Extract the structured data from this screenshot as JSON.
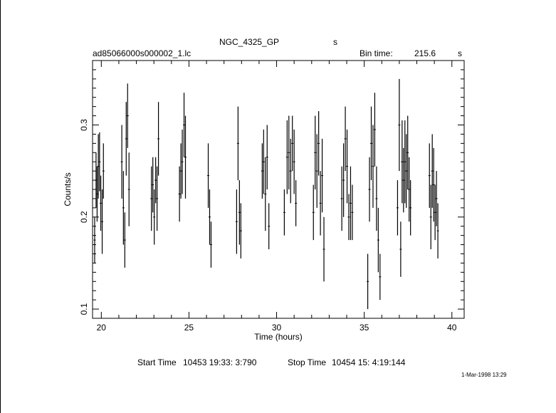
{
  "header": {
    "object": "NGC_4325_GP",
    "object_unit": "s",
    "file_name": "ad85066000s000002_1.lc",
    "bin_time_label": "Bin time:",
    "bin_time_value": "215.6",
    "bin_time_unit": "s"
  },
  "footer": {
    "start_label": "Start Time",
    "start_value": "10453 19:33: 3:790",
    "stop_label": "Stop Time",
    "stop_value": "10454 15: 4:19:144",
    "timestamp": "1-Mar-1998 13:29"
  },
  "chart_data": {
    "type": "scatter",
    "xlabel": "Time (hours)",
    "ylabel": "Counts/s",
    "xlim": [
      19.5,
      40.7
    ],
    "ylim": [
      0.09,
      0.37
    ],
    "xticks": [
      20,
      25,
      30,
      35,
      40
    ],
    "yticks": [
      0.1,
      0.2,
      0.3
    ],
    "grid": false,
    "legend": "none",
    "series": [
      {
        "points": [
          {
            "x": 19.62,
            "y": 0.175,
            "err": 0.025
          },
          {
            "x": 19.7,
            "y": 0.24,
            "err": 0.03
          },
          {
            "x": 19.76,
            "y": 0.225,
            "err": 0.03
          },
          {
            "x": 19.83,
            "y": 0.255,
            "err": 0.035
          },
          {
            "x": 19.9,
            "y": 0.26,
            "err": 0.032
          },
          {
            "x": 19.97,
            "y": 0.215,
            "err": 0.03
          },
          {
            "x": 20.05,
            "y": 0.195,
            "err": 0.035
          },
          {
            "x": 20.12,
            "y": 0.25,
            "err": 0.03
          },
          {
            "x": 21.17,
            "y": 0.26,
            "err": 0.04
          },
          {
            "x": 21.26,
            "y": 0.21,
            "err": 0.04
          },
          {
            "x": 21.34,
            "y": 0.175,
            "err": 0.03
          },
          {
            "x": 21.42,
            "y": 0.285,
            "err": 0.04
          },
          {
            "x": 21.5,
            "y": 0.31,
            "err": 0.035
          },
          {
            "x": 21.58,
            "y": 0.23,
            "err": 0.04
          },
          {
            "x": 22.86,
            "y": 0.22,
            "err": 0.035
          },
          {
            "x": 22.94,
            "y": 0.235,
            "err": 0.03
          },
          {
            "x": 23.02,
            "y": 0.2,
            "err": 0.03
          },
          {
            "x": 23.1,
            "y": 0.24,
            "err": 0.025
          },
          {
            "x": 23.18,
            "y": 0.22,
            "err": 0.035
          },
          {
            "x": 23.26,
            "y": 0.285,
            "err": 0.04
          },
          {
            "x": 24.46,
            "y": 0.225,
            "err": 0.03
          },
          {
            "x": 24.54,
            "y": 0.25,
            "err": 0.03
          },
          {
            "x": 24.62,
            "y": 0.26,
            "err": 0.035
          },
          {
            "x": 24.72,
            "y": 0.3,
            "err": 0.035
          },
          {
            "x": 24.8,
            "y": 0.265,
            "err": 0.045
          },
          {
            "x": 26.1,
            "y": 0.245,
            "err": 0.035
          },
          {
            "x": 26.18,
            "y": 0.2,
            "err": 0.03
          },
          {
            "x": 26.26,
            "y": 0.17,
            "err": 0.025
          },
          {
            "x": 27.72,
            "y": 0.195,
            "err": 0.035
          },
          {
            "x": 27.8,
            "y": 0.28,
            "err": 0.04
          },
          {
            "x": 27.88,
            "y": 0.205,
            "err": 0.035
          },
          {
            "x": 27.96,
            "y": 0.185,
            "err": 0.03
          },
          {
            "x": 29.18,
            "y": 0.25,
            "err": 0.03
          },
          {
            "x": 29.26,
            "y": 0.26,
            "err": 0.035
          },
          {
            "x": 29.36,
            "y": 0.225,
            "err": 0.04
          },
          {
            "x": 29.46,
            "y": 0.265,
            "err": 0.035
          },
          {
            "x": 29.56,
            "y": 0.19,
            "err": 0.025
          },
          {
            "x": 30.44,
            "y": 0.205,
            "err": 0.025
          },
          {
            "x": 30.6,
            "y": 0.265,
            "err": 0.04
          },
          {
            "x": 30.7,
            "y": 0.27,
            "err": 0.04
          },
          {
            "x": 30.8,
            "y": 0.25,
            "err": 0.035
          },
          {
            "x": 30.9,
            "y": 0.28,
            "err": 0.03
          },
          {
            "x": 31.0,
            "y": 0.26,
            "err": 0.035
          },
          {
            "x": 31.1,
            "y": 0.215,
            "err": 0.025
          },
          {
            "x": 32.1,
            "y": 0.205,
            "err": 0.03
          },
          {
            "x": 32.2,
            "y": 0.27,
            "err": 0.04
          },
          {
            "x": 32.3,
            "y": 0.25,
            "err": 0.04
          },
          {
            "x": 32.4,
            "y": 0.28,
            "err": 0.035
          },
          {
            "x": 32.5,
            "y": 0.215,
            "err": 0.035
          },
          {
            "x": 32.6,
            "y": 0.245,
            "err": 0.04
          },
          {
            "x": 32.7,
            "y": 0.165,
            "err": 0.035
          },
          {
            "x": 33.72,
            "y": 0.22,
            "err": 0.035
          },
          {
            "x": 33.82,
            "y": 0.24,
            "err": 0.04
          },
          {
            "x": 33.92,
            "y": 0.285,
            "err": 0.035
          },
          {
            "x": 34.02,
            "y": 0.255,
            "err": 0.04
          },
          {
            "x": 34.12,
            "y": 0.2,
            "err": 0.025
          },
          {
            "x": 34.22,
            "y": 0.215,
            "err": 0.04
          },
          {
            "x": 34.32,
            "y": 0.205,
            "err": 0.03
          },
          {
            "x": 35.2,
            "y": 0.13,
            "err": 0.03
          },
          {
            "x": 35.3,
            "y": 0.23,
            "err": 0.035
          },
          {
            "x": 35.4,
            "y": 0.28,
            "err": 0.04
          },
          {
            "x": 35.5,
            "y": 0.255,
            "err": 0.045
          },
          {
            "x": 35.6,
            "y": 0.295,
            "err": 0.04
          },
          {
            "x": 35.7,
            "y": 0.22,
            "err": 0.035
          },
          {
            "x": 35.8,
            "y": 0.175,
            "err": 0.035
          },
          {
            "x": 35.9,
            "y": 0.135,
            "err": 0.025
          },
          {
            "x": 36.9,
            "y": 0.21,
            "err": 0.03
          },
          {
            "x": 37.0,
            "y": 0.3,
            "err": 0.05
          },
          {
            "x": 37.08,
            "y": 0.165,
            "err": 0.03
          },
          {
            "x": 37.16,
            "y": 0.26,
            "err": 0.045
          },
          {
            "x": 37.24,
            "y": 0.24,
            "err": 0.035
          },
          {
            "x": 37.32,
            "y": 0.26,
            "err": 0.045
          },
          {
            "x": 37.4,
            "y": 0.25,
            "err": 0.04
          },
          {
            "x": 37.48,
            "y": 0.27,
            "err": 0.04
          },
          {
            "x": 37.56,
            "y": 0.23,
            "err": 0.035
          },
          {
            "x": 37.64,
            "y": 0.21,
            "err": 0.03
          },
          {
            "x": 38.72,
            "y": 0.245,
            "err": 0.035
          },
          {
            "x": 38.8,
            "y": 0.2,
            "err": 0.035
          },
          {
            "x": 38.88,
            "y": 0.25,
            "err": 0.04
          },
          {
            "x": 38.96,
            "y": 0.235,
            "err": 0.04
          },
          {
            "x": 39.04,
            "y": 0.205,
            "err": 0.03
          },
          {
            "x": 39.12,
            "y": 0.22,
            "err": 0.03
          },
          {
            "x": 39.2,
            "y": 0.185,
            "err": 0.03
          }
        ]
      }
    ]
  }
}
